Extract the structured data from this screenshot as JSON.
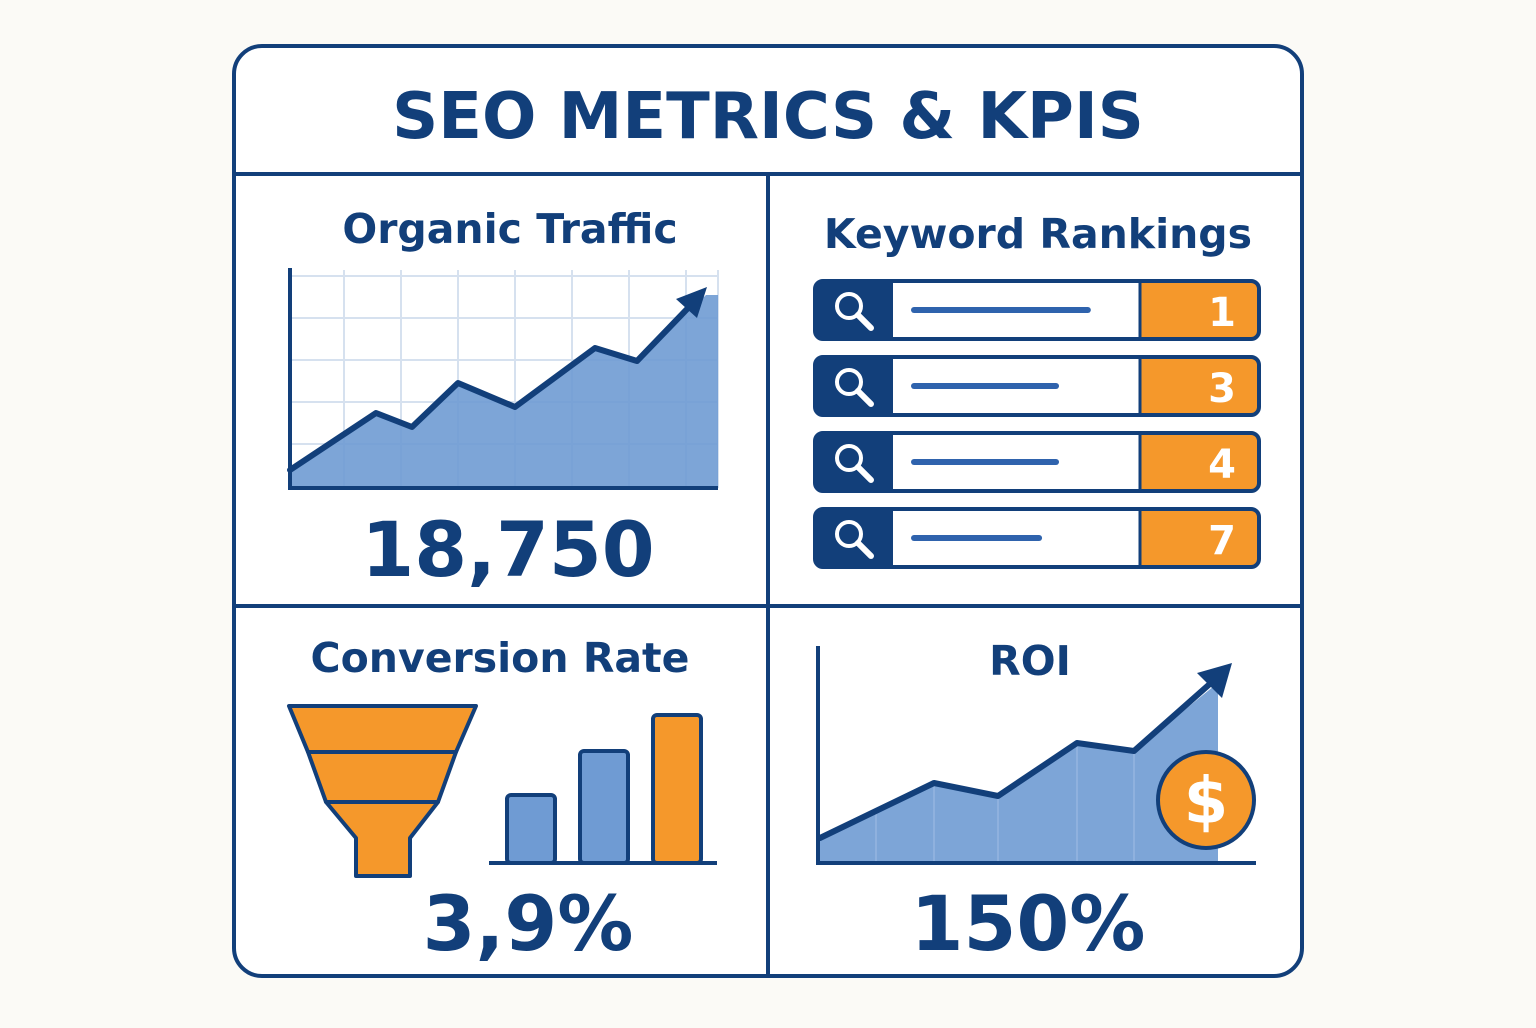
{
  "title": "SEO METRICS & KPIS",
  "colors": {
    "navy": "#123f7a",
    "blue": "#6f9bd3",
    "light_blue": "#b9cfea",
    "orange": "#f5982b",
    "background": "#fbfaf6",
    "grid": "#d6e1ef"
  },
  "panels": {
    "organic_traffic": {
      "label": "Organic Traffic",
      "value": "18,750",
      "icon": "trend-up-arrow-icon"
    },
    "keyword_rankings": {
      "label": "Keyword Rankings",
      "icon": "search-icon",
      "rows": [
        {
          "rank": "1",
          "bar_fraction": 0.82
        },
        {
          "rank": "3",
          "bar_fraction": 0.67
        },
        {
          "rank": "4",
          "bar_fraction": 0.67
        },
        {
          "rank": "7",
          "bar_fraction": 0.59
        }
      ]
    },
    "conversion_rate": {
      "label": "Conversion Rate",
      "value": "3,9%",
      "icon": "funnel-icon"
    },
    "roi": {
      "label": "ROI",
      "value": "150%",
      "icon": "dollar-coin-icon",
      "coin_symbol": "$"
    }
  }
}
